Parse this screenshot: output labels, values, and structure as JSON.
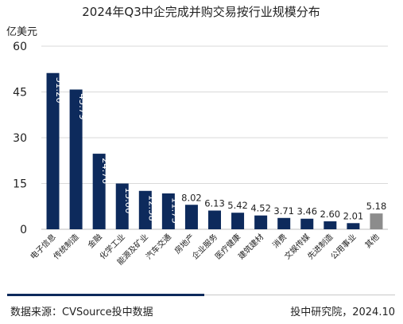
{
  "chart_data": {
    "type": "bar",
    "title": "2024年Q3中企完成并购交易按行业规模分布",
    "unit_label": "亿美元",
    "ylim": [
      0,
      60
    ],
    "yticks": [
      0,
      15,
      30,
      45,
      60
    ],
    "grid": true,
    "categories": [
      "电子信息",
      "传统制造",
      "金融",
      "化学工业",
      "能源及矿业",
      "汽车交通",
      "房地产",
      "企业服务",
      "医疗健康",
      "建筑建材",
      "消费",
      "文娱传媒",
      "先进制造",
      "公用事业",
      "其他"
    ],
    "values": [
      51.2,
      45.79,
      24.76,
      15.0,
      12.58,
      11.75,
      8.02,
      6.13,
      5.42,
      4.52,
      3.71,
      3.46,
      2.6,
      2.01,
      5.18
    ],
    "value_labels": [
      "51.20",
      "45.79",
      "24.76",
      "15.00",
      "12.58",
      "11.75",
      "8.02",
      "6.13",
      "5.42",
      "4.52",
      "3.71",
      "3.46",
      "2.60",
      "2.01",
      "5.18"
    ],
    "colors": {
      "primary": "#0d2a5c",
      "other": "#8c8c8c"
    }
  },
  "footer": {
    "source": "数据来源：CVSource投中数据",
    "credit": "投中研究院，2024.10"
  }
}
